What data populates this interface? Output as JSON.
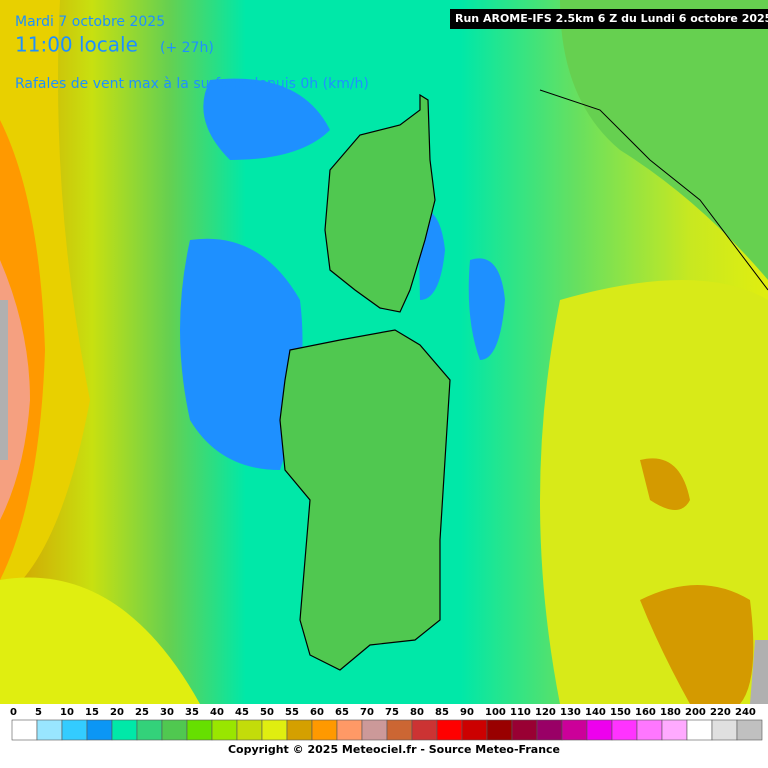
{
  "header": {
    "date": "Mardi 7 octobre 2025",
    "time": "11:00 locale",
    "offset": "(+ 27h)",
    "title": "Rafales de vent max à la surface depuis 0h (km/h)",
    "run": "Run AROME-IFS 2.5km 6 Z du Lundi 6 octobre 2025"
  },
  "legend": {
    "labels": [
      0,
      5,
      10,
      15,
      20,
      25,
      30,
      35,
      40,
      45,
      50,
      55,
      60,
      65,
      70,
      75,
      80,
      85,
      90,
      100,
      110,
      120,
      130,
      140,
      150,
      160,
      180,
      200,
      220,
      240
    ],
    "colors": [
      "#ffffff",
      "#99e6ff",
      "#33ccff",
      "#0b96f5",
      "#00e8a8",
      "#33d27a",
      "#50c850",
      "#66e000",
      "#99e600",
      "#c3dc0a",
      "#e0ee10",
      "#d4a000",
      "#ff9900",
      "#ff9966",
      "#cc9999",
      "#cc6633",
      "#cc3333",
      "#ff0000",
      "#cc0000",
      "#990000",
      "#990033",
      "#990066",
      "#cc0099",
      "#ee00ee",
      "#ff33ff",
      "#ff77ff",
      "#ffaaff",
      "#ffffff",
      "#e0e0e0",
      "#c0c0c0"
    ]
  },
  "footer": {
    "copyright": "Copyright © 2025 Meteociel.fr - Source Meteo-France"
  }
}
